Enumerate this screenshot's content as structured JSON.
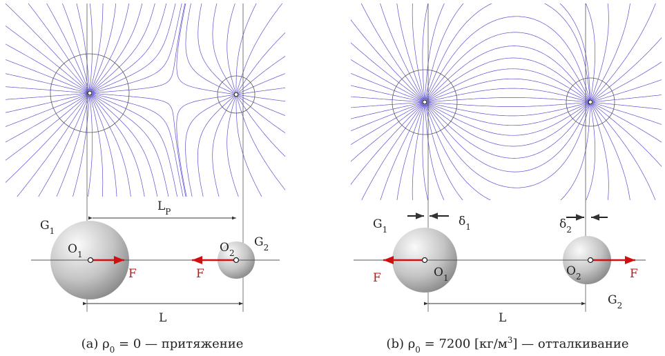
{
  "panels": [
    {
      "labels": {
        "G1": [
          {
            "text": "G"
          },
          {
            "text": "1",
            "sub": true
          }
        ],
        "G2": [
          {
            "text": "G"
          },
          {
            "text": "2",
            "sub": true
          }
        ],
        "O1": [
          {
            "text": "O"
          },
          {
            "text": "1",
            "sub": true
          }
        ],
        "O2": [
          {
            "text": "O"
          },
          {
            "text": "2",
            "sub": true
          }
        ],
        "top": [
          {
            "text": "L"
          },
          {
            "text": "P",
            "sub": true
          }
        ],
        "L": [
          {
            "text": "L"
          }
        ],
        "F1": [
          {
            "text": "F"
          }
        ],
        "F2": [
          {
            "text": "F"
          }
        ]
      },
      "caption": [
        {
          "text": "(a) ρ"
        },
        {
          "text": "0",
          "sub": true
        },
        {
          "text": " = 0 — притяжение"
        }
      ]
    },
    {
      "labels": {
        "G1": [
          {
            "text": "G"
          },
          {
            "text": "1",
            "sub": true
          }
        ],
        "G2": [
          {
            "text": "G"
          },
          {
            "text": "2",
            "sub": true
          }
        ],
        "O1": [
          {
            "text": "O"
          },
          {
            "text": "1",
            "sub": true
          }
        ],
        "O2": [
          {
            "text": "O"
          },
          {
            "text": "2",
            "sub": true
          }
        ],
        "d1": [
          {
            "text": "δ"
          },
          {
            "text": "1",
            "sub": true
          }
        ],
        "d2": [
          {
            "text": "δ"
          },
          {
            "text": "2",
            "sub": true
          }
        ],
        "L": [
          {
            "text": "L"
          }
        ],
        "F1": [
          {
            "text": "F"
          }
        ],
        "F2": [
          {
            "text": "F"
          }
        ]
      },
      "caption": [
        {
          "text": "(b) ρ"
        },
        {
          "text": "0",
          "sub": true
        },
        {
          "text": " = 7200 [кг/м"
        },
        {
          "text": "3",
          "sup": true
        },
        {
          "text": "] — отталкивание"
        }
      ]
    }
  ]
}
